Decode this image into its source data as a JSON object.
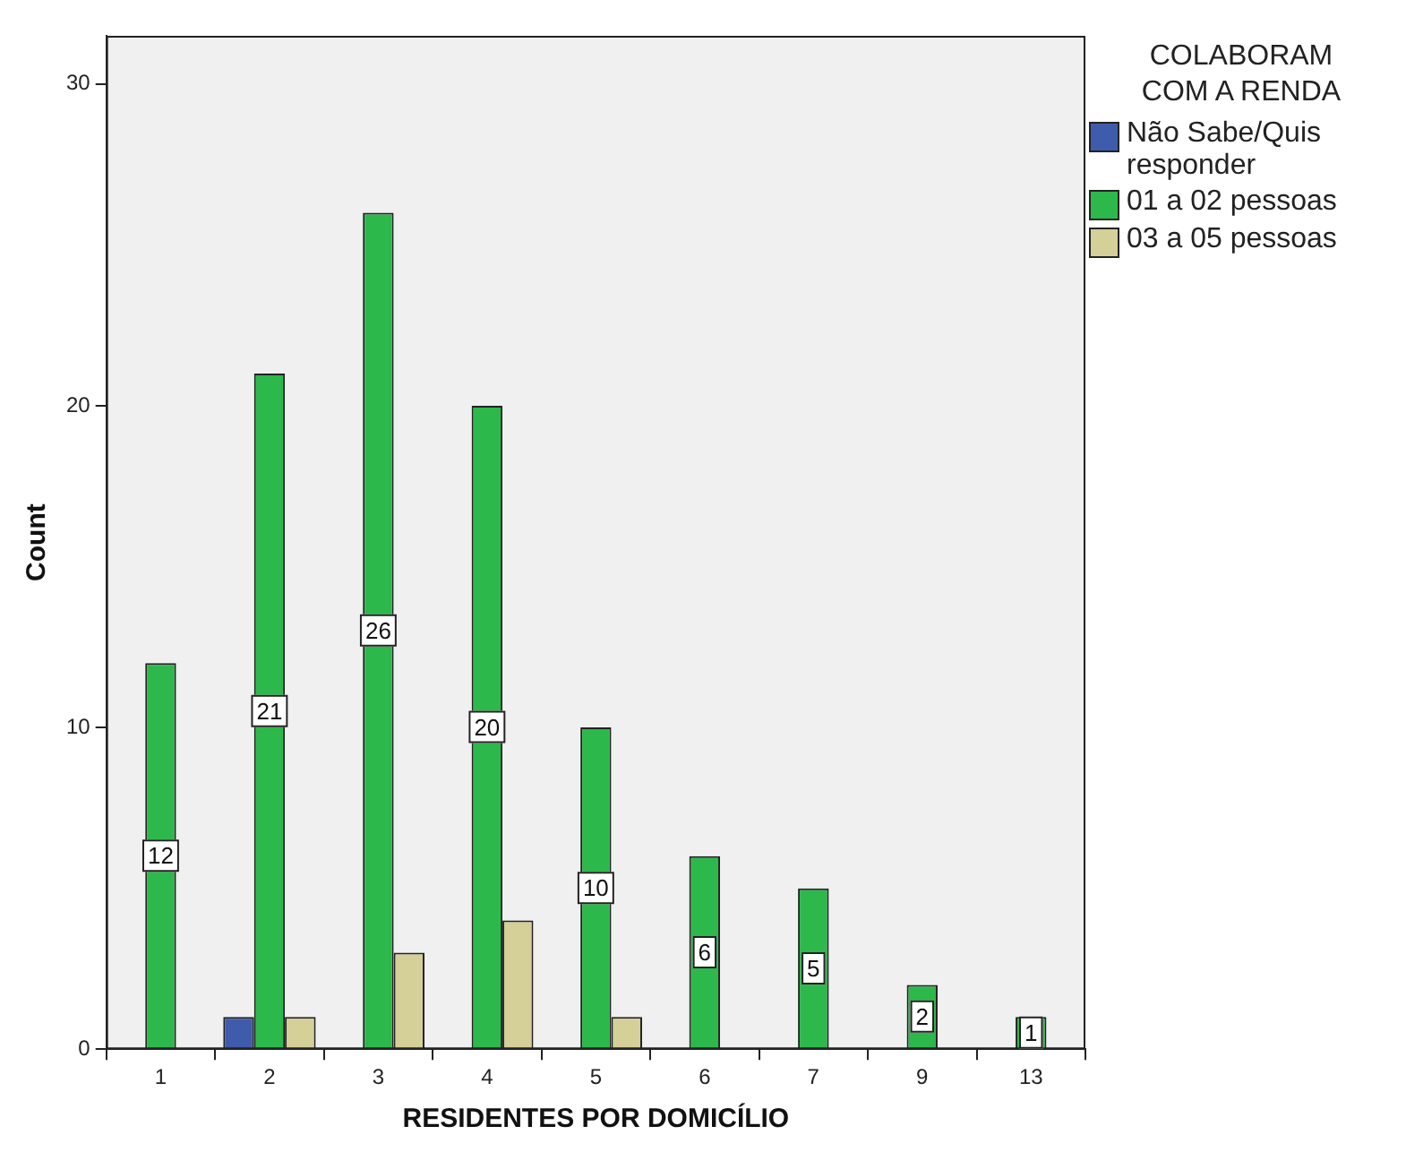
{
  "chart_data": {
    "type": "bar",
    "xlabel": "RESIDENTES POR DOMICÍLIO",
    "ylabel": "Count",
    "legend_title": "COLABORAM COM A RENDA",
    "legend": "right",
    "categories": [
      "1",
      "2",
      "3",
      "4",
      "5",
      "6",
      "7",
      "9",
      "13"
    ],
    "series": [
      {
        "name": "Não Sabe/Quis responder",
        "color": "#3f5bab",
        "values": [
          null,
          1,
          null,
          null,
          null,
          null,
          null,
          null,
          null
        ]
      },
      {
        "name": "01 a 02 pessoas",
        "color": "#2db84b",
        "values": [
          12,
          21,
          26,
          20,
          10,
          6,
          5,
          2,
          1
        ],
        "value_labels": [
          "12",
          "21",
          "26",
          "20",
          "10",
          "6",
          "5",
          "2",
          "1"
        ]
      },
      {
        "name": "03 a 05 pessoas",
        "color": "#d5cf98",
        "values": [
          null,
          1,
          3,
          4,
          1,
          null,
          null,
          null,
          null
        ]
      }
    ],
    "ylim": [
      0,
      31.5
    ],
    "yticks": [
      0,
      10,
      20,
      30
    ],
    "grid": false
  }
}
